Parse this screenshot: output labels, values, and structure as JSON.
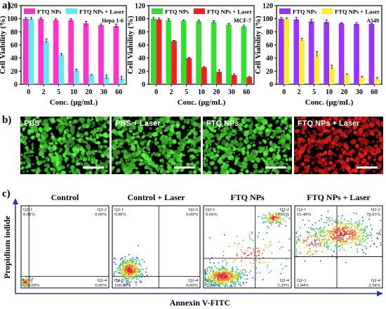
{
  "panels": {
    "a": "a)",
    "b": "b)",
    "c": "c)"
  },
  "colors": {
    "hepa_ctrl": "#ff33cc",
    "hepa_laser": "#66e8f0",
    "mcf_ctrl": "#33dd33",
    "mcf_laser": "#ee2222",
    "a549_ctrl": "#9933ff",
    "a549_laser": "#ffee33"
  },
  "chart_data": [
    {
      "type": "bar",
      "cell_line": "Hepa 1-6",
      "categories": [
        "0",
        "2",
        "5",
        "10",
        "20",
        "30",
        "60"
      ],
      "series": [
        {
          "name": "FTQ NPs",
          "values": [
            100,
            100,
            98,
            98,
            93,
            90,
            89
          ],
          "errors": [
            2,
            2,
            2,
            2,
            3,
            2,
            3
          ]
        },
        {
          "name": "FTQ NPs + Laser",
          "values": [
            100,
            66,
            45,
            21,
            14,
            11,
            9
          ],
          "errors": [
            2,
            3,
            2,
            2,
            1,
            3,
            3
          ]
        }
      ],
      "xlabel": "Conc. (μg/mL)",
      "ylabel": "Cell Viability (%)",
      "ylim": [
        0,
        120
      ],
      "yticks": [
        "0",
        "20",
        "40",
        "60",
        "80",
        "100",
        "120"
      ],
      "legend": "top"
    },
    {
      "type": "bar",
      "cell_line": "MCF-7",
      "categories": [
        "0",
        "2",
        "5",
        "10",
        "20",
        "30",
        "60"
      ],
      "series": [
        {
          "name": "FTQ NPs",
          "values": [
            100,
            98,
            97,
            96,
            95,
            91,
            88
          ],
          "errors": [
            2,
            2,
            1,
            2,
            2,
            2,
            2
          ]
        },
        {
          "name": "FTQ NPs + Laser",
          "values": [
            99,
            66,
            40,
            26,
            19,
            14,
            11
          ],
          "errors": [
            2,
            1,
            1,
            1,
            3,
            2,
            1
          ]
        }
      ],
      "xlabel": "Conc. (μg/mL)",
      "ylabel": "Cell Viability (%)",
      "ylim": [
        0,
        120
      ],
      "yticks": [
        "0",
        "20",
        "40",
        "60",
        "80",
        "100",
        "120"
      ],
      "legend": "top"
    },
    {
      "type": "bar",
      "cell_line": "A549",
      "categories": [
        "0",
        "2",
        "5",
        "10",
        "20",
        "30",
        "60"
      ],
      "series": [
        {
          "name": "FTQ NPs",
          "values": [
            100,
            99,
            96,
            95,
            93,
            92,
            92
          ],
          "errors": [
            2,
            3,
            3,
            3,
            1,
            2,
            1
          ]
        },
        {
          "name": "FTQ NPs + Laser",
          "values": [
            100,
            68,
            46,
            26,
            15,
            11,
            9
          ],
          "errors": [
            1,
            2,
            4,
            3,
            1,
            1,
            1
          ]
        }
      ],
      "xlabel": "Conc. (μg/mL)",
      "ylabel": "Cell Viability (%)",
      "ylim": [
        0,
        120
      ],
      "yticks": [
        "0",
        "20",
        "40",
        "60",
        "80",
        "100",
        "120"
      ],
      "legend": "top"
    },
    {
      "type": "scatter",
      "panel": "flow_cytometry",
      "xlabel": "Annexin V-FITC",
      "ylabel": "Propidium iodide",
      "plots": [
        {
          "title": "Control",
          "quadrants": {
            "Q2-1": "0.00%",
            "Q2-2": "0.00%",
            "Q2-3": "100.00%",
            "Q2-4": "0.00%"
          }
        },
        {
          "title": "Control + Laser",
          "quadrants": {
            "Q2-1": "0.00%",
            "Q2-2": "0.00%",
            "Q2-3": "100.00%",
            "Q2-4": "0.00%"
          }
        },
        {
          "title": "FTQ NPs",
          "quadrants": {
            "Q2-1": "0.66%",
            "Q2-2": "18.56%",
            "Q2-3": "77.49%",
            "Q2-4": "3.29%"
          }
        },
        {
          "title": "FTQ NPs + Laser",
          "quadrants": {
            "Q2-1": "16.49%",
            "Q2-2": "79.03%",
            "Q2-3": "1.94%",
            "Q2-4": "2.54%"
          }
        }
      ]
    }
  ],
  "micrographs": [
    {
      "label": "PBS",
      "color": "green"
    },
    {
      "label": "PBS + Laser",
      "color": "green"
    },
    {
      "label": "FTQ NPs",
      "color": "green"
    },
    {
      "label": "FTQ NPs + Laser",
      "color": "red"
    }
  ]
}
